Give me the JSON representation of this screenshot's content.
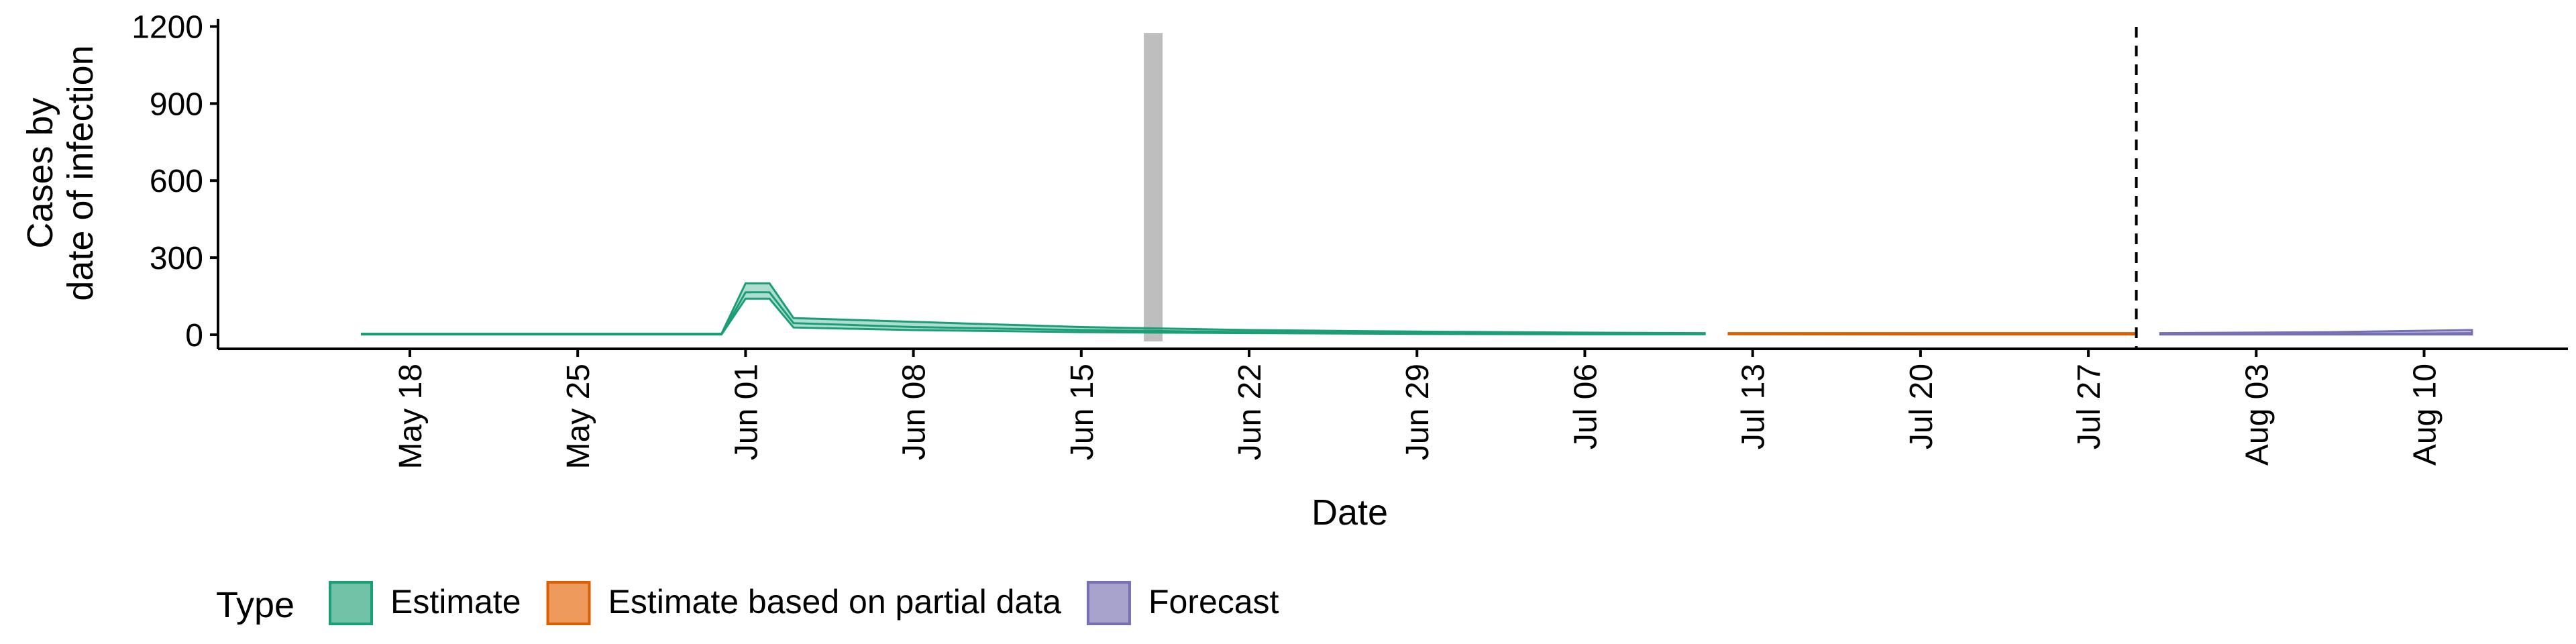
{
  "chart_data": {
    "type": "area",
    "xlabel": "Date",
    "ylabel_lines": [
      "Cases by",
      "date of infection"
    ],
    "x_tick_labels": [
      "May 18",
      "May 25",
      "Jun 01",
      "Jun 08",
      "Jun 15",
      "Jun 22",
      "Jun 29",
      "Jul 06",
      "Jul 13",
      "Jul 20",
      "Jul 27",
      "Aug 03",
      "Aug 10"
    ],
    "y_ticks": [
      0,
      300,
      600,
      900,
      1200
    ],
    "ylim": [
      -55,
      1230
    ],
    "xlim": [
      "2020-05-10",
      "2020-08-16"
    ],
    "grid": false,
    "legend": {
      "position": "bottom-left",
      "title": "Type",
      "items": [
        {
          "label": "Estimate",
          "fill": "#71c2a6",
          "stroke": "#1b9e77"
        },
        {
          "label": "Estimate based on partial data",
          "fill": "#ee9a5c",
          "stroke": "#d95f02"
        },
        {
          "label": "Forecast",
          "fill": "#a7a3cd",
          "stroke": "#7570b3"
        }
      ]
    },
    "reference_line": {
      "date": "2020-07-29",
      "style": "dashed"
    },
    "reported_cases_bar": {
      "date": "2020-06-18",
      "value": 1175,
      "color": "#bebebe"
    },
    "series": [
      {
        "name": "Estimate",
        "color": "#1b9e77",
        "dates": [
          "2020-05-16",
          "2020-05-23",
          "2020-05-31",
          "2020-06-01",
          "2020-06-02",
          "2020-06-03",
          "2020-06-08",
          "2020-06-15",
          "2020-06-22",
          "2020-06-29",
          "2020-07-06",
          "2020-07-11"
        ],
        "median": [
          2,
          2,
          2,
          165,
          165,
          45,
          30,
          18,
          10,
          6,
          5,
          4
        ],
        "lower": [
          1,
          1,
          1,
          140,
          140,
          28,
          18,
          10,
          6,
          3,
          2,
          2
        ],
        "upper": [
          4,
          4,
          4,
          200,
          200,
          65,
          50,
          30,
          18,
          12,
          8,
          6
        ]
      },
      {
        "name": "Estimate based on partial data",
        "color": "#d95f02",
        "dates": [
          "2020-07-12",
          "2020-07-20",
          "2020-07-29"
        ],
        "median": [
          4,
          3,
          3
        ],
        "lower": [
          2,
          1,
          1
        ],
        "upper": [
          6,
          6,
          6
        ]
      },
      {
        "name": "Forecast",
        "color": "#7570b3",
        "dates": [
          "2020-07-30",
          "2020-08-06",
          "2020-08-12"
        ],
        "median": [
          3,
          3,
          6
        ],
        "lower": [
          1,
          1,
          1
        ],
        "upper": [
          6,
          10,
          18
        ]
      }
    ]
  }
}
